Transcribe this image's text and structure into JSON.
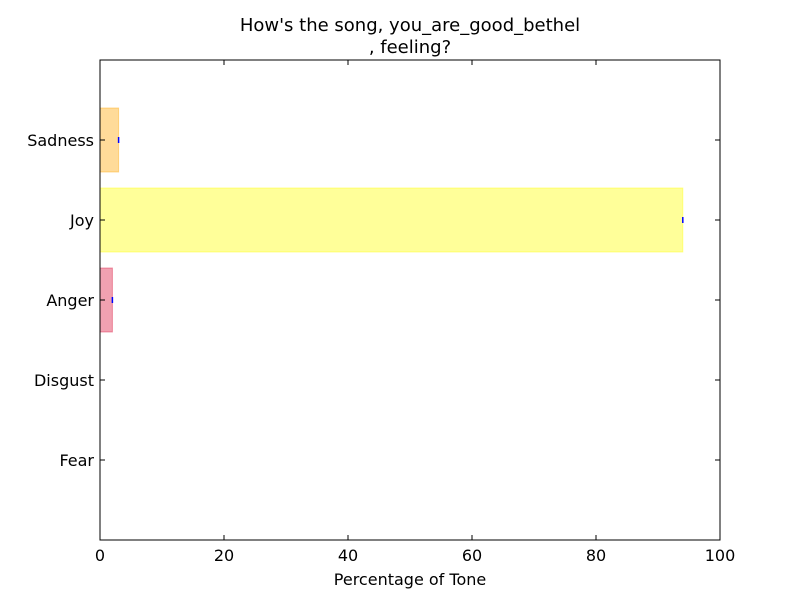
{
  "chart_data": {
    "type": "bar",
    "orientation": "horizontal",
    "title_lines": [
      "How's the song, you_are_good_bethel",
      ", feeling?"
    ],
    "xlabel": "Percentage of Tone",
    "ylabel": "",
    "xlim": [
      0,
      100
    ],
    "xticks": [
      "0",
      "20",
      "40",
      "60",
      "80",
      "100"
    ],
    "categories": [
      "Fear",
      "Disgust",
      "Anger",
      "Joy",
      "Sadness"
    ],
    "values": [
      0,
      0,
      2,
      94,
      3
    ],
    "colors": [
      "#8a6bbf",
      "#4caf50",
      "#dc143c",
      "#ffff00",
      "#ffa500"
    ],
    "bar_opacity": 0.4,
    "error_bar_color": "#0000ff",
    "grid": false,
    "legend": "none"
  }
}
